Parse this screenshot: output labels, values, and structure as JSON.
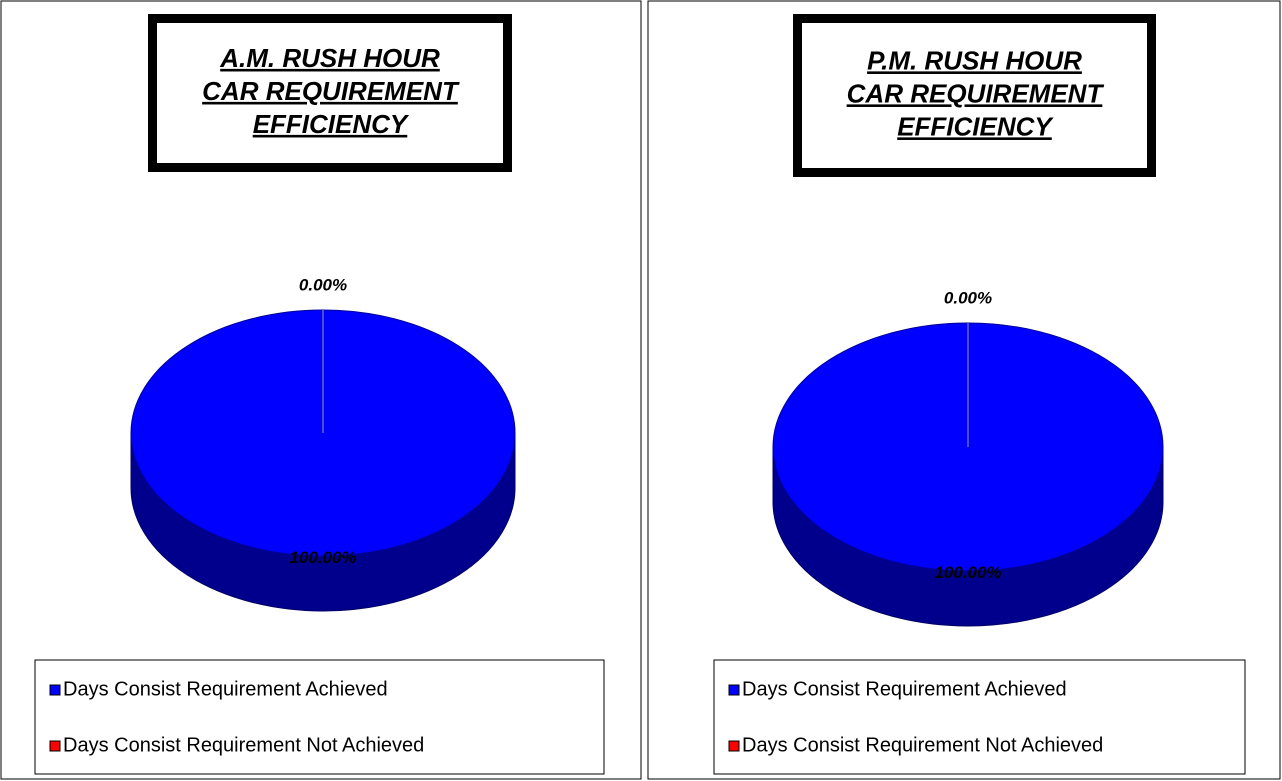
{
  "chart_data": [
    {
      "type": "pie",
      "title": [
        "A.M. RUSH HOUR",
        "CAR REQUIREMENT",
        "EFFICIENCY"
      ],
      "categories": [
        "Days Consist Requirement Achieved",
        "Days Consist Requirement Not Achieved"
      ],
      "values": [
        100,
        0
      ],
      "value_labels": [
        "100.00%",
        "0.00%"
      ],
      "colors": [
        "#0000ff",
        "#ff0000"
      ]
    },
    {
      "type": "pie",
      "title": [
        "P.M. RUSH HOUR",
        "CAR REQUIREMENT",
        "EFFICIENCY"
      ],
      "categories": [
        "Days Consist Requirement Achieved",
        "Days Consist Requirement Not Achieved"
      ],
      "values": [
        100,
        0
      ],
      "value_labels": [
        "100.00%",
        "0.00%"
      ],
      "colors": [
        "#0000ff",
        "#ff0000"
      ]
    }
  ]
}
